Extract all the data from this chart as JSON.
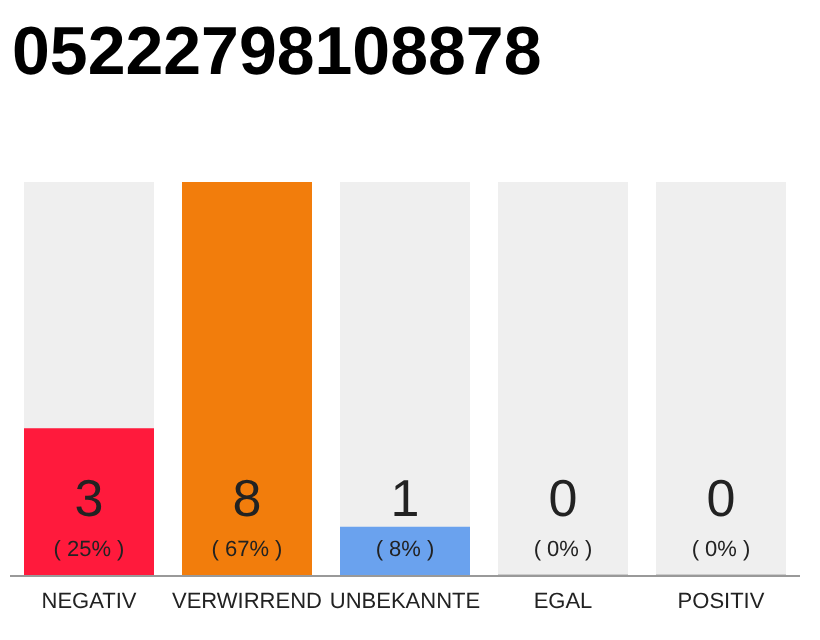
{
  "chart_data": {
    "type": "bar",
    "title": "05222798108878",
    "categories": [
      "NEGATIV",
      "VERWIRREND",
      "UNBEKANNTE",
      "EGAL",
      "POSITIV"
    ],
    "values": [
      3,
      8,
      1,
      0,
      0
    ],
    "colors": [
      "#ff1a3c",
      "#f27d0c",
      "#6aa2ee",
      "#cccccc",
      "#cccccc"
    ],
    "data_labels": true,
    "annotations": [
      "( 25% )",
      "( 67% )",
      "( 8% )",
      "( 0% )",
      "( 0% )"
    ]
  }
}
